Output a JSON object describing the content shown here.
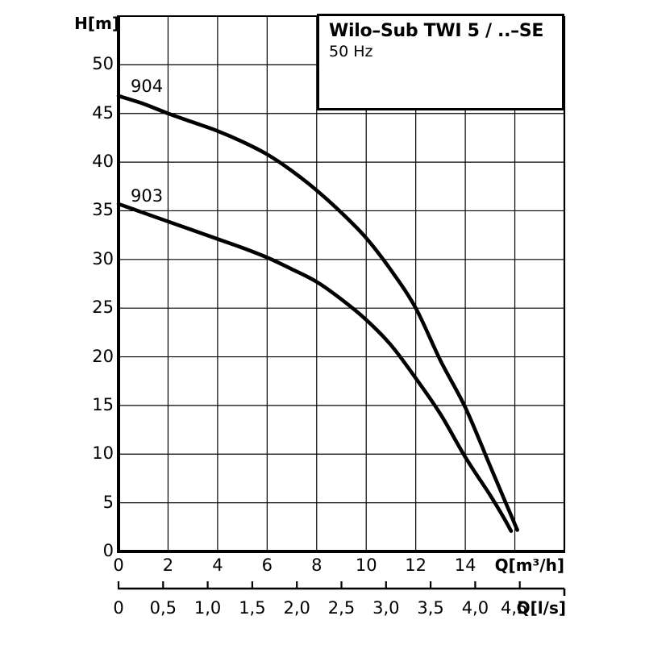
{
  "background_color": "#ffffff",
  "line_color": "#000000",
  "title_box": {
    "title": "Wilo–Sub TWI 5 / ..–SE",
    "subtitle": "50 Hz"
  },
  "chart_data": {
    "type": "line",
    "title": "Wilo–Sub TWI 5 / ..–SE",
    "subtitle": "50 Hz",
    "xlabel": "Q[m³/h]",
    "x2label": "Q[l/s]",
    "ylabel": "H[m]",
    "xlim": [
      0,
      18
    ],
    "ylim": [
      0,
      55
    ],
    "grid": true,
    "x_grid_step": 2,
    "y_grid_step": 5,
    "legend": "inline-curve-labels",
    "x_ticks": [
      0,
      2,
      4,
      6,
      8,
      10,
      12,
      14
    ],
    "x_tick_labels": [
      "0",
      "2",
      "4",
      "6",
      "8",
      "10",
      "12",
      "14"
    ],
    "y_ticks": [
      0,
      5,
      10,
      15,
      20,
      25,
      30,
      35,
      40,
      45,
      50
    ],
    "y_tick_labels": [
      "0",
      "5",
      "10",
      "15",
      "20",
      "25",
      "30",
      "35",
      "40",
      "45",
      "50"
    ],
    "x2_unit_to_x_factor": 3.6,
    "x2_ticks": [
      0,
      0.5,
      1.0,
      1.5,
      2.0,
      2.5,
      3.0,
      3.5,
      4.0,
      4.5
    ],
    "x2_tick_labels": [
      "0",
      "0,5",
      "1,0",
      "1,5",
      "2,0",
      "2,5",
      "3,0",
      "3,5",
      "4,0",
      "4,5"
    ],
    "series": [
      {
        "name": "904",
        "points": [
          [
            0,
            46.8
          ],
          [
            1,
            46.0
          ],
          [
            2,
            45.0
          ],
          [
            3,
            44.1
          ],
          [
            4,
            43.2
          ],
          [
            5,
            42.1
          ],
          [
            6,
            40.8
          ],
          [
            7,
            39.1
          ],
          [
            8,
            37.1
          ],
          [
            9,
            34.8
          ],
          [
            10,
            32.2
          ],
          [
            11,
            28.9
          ],
          [
            12,
            25.0
          ],
          [
            13,
            19.6
          ],
          [
            14,
            14.8
          ],
          [
            15,
            8.8
          ],
          [
            15.6,
            5.2
          ],
          [
            16.1,
            2.2
          ]
        ]
      },
      {
        "name": "903",
        "points": [
          [
            0,
            35.7
          ],
          [
            1,
            34.8
          ],
          [
            2,
            33.9
          ],
          [
            3,
            33.0
          ],
          [
            4,
            32.1
          ],
          [
            5,
            31.2
          ],
          [
            6,
            30.2
          ],
          [
            7,
            29.0
          ],
          [
            8,
            27.7
          ],
          [
            9,
            25.9
          ],
          [
            10,
            23.8
          ],
          [
            11,
            21.2
          ],
          [
            12,
            17.8
          ],
          [
            13,
            14.1
          ],
          [
            14,
            9.7
          ],
          [
            15,
            5.8
          ],
          [
            15.5,
            3.7
          ],
          [
            15.85,
            2.1
          ]
        ]
      }
    ]
  }
}
